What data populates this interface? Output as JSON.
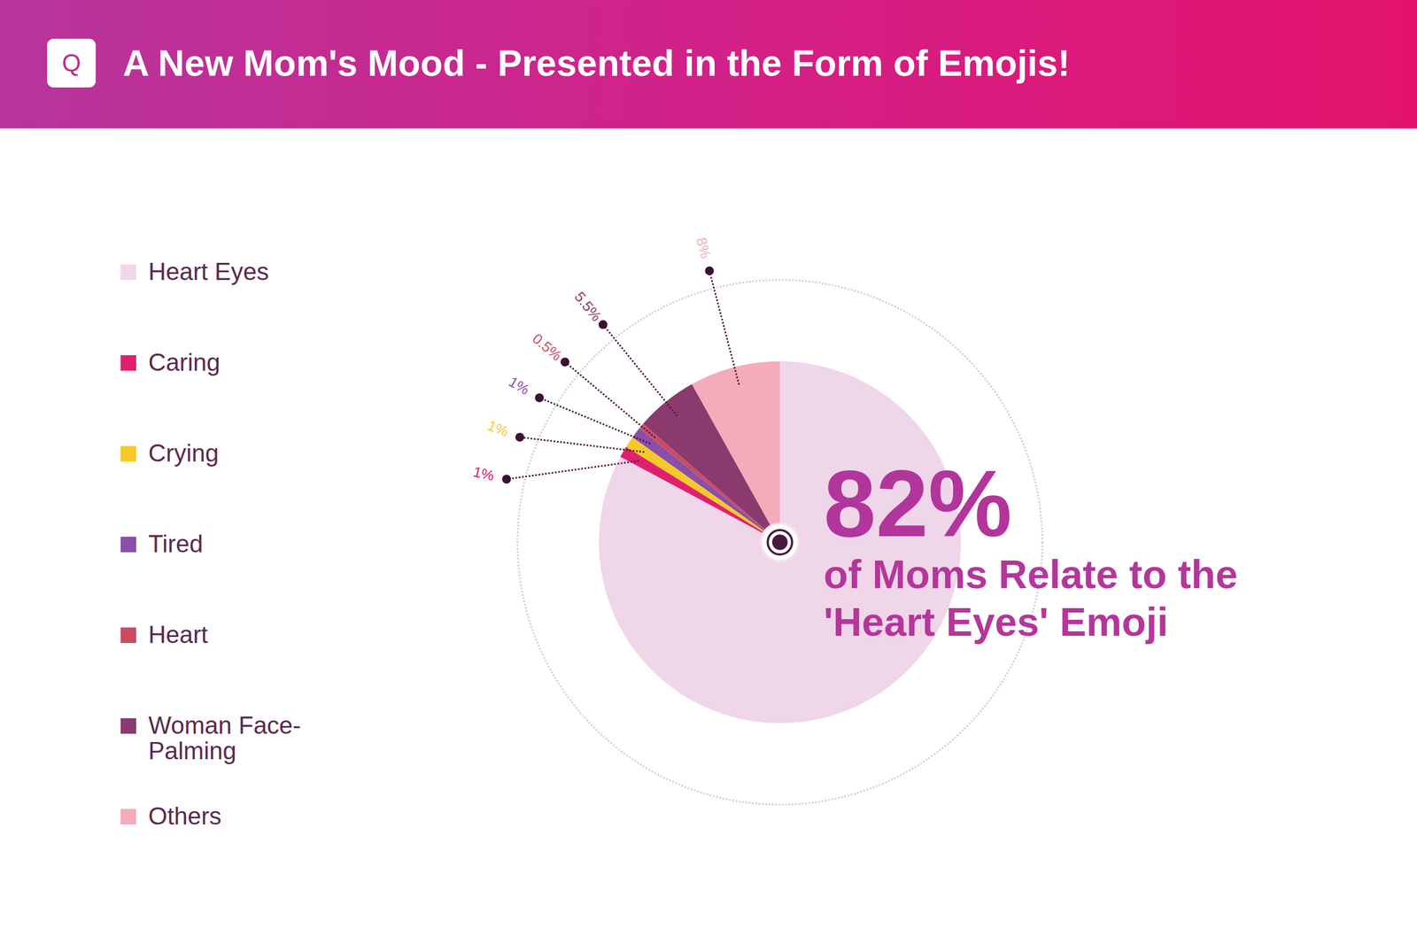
{
  "chart_data": {
    "type": "pie",
    "title": "A New Mom's Mood - Presented in the Form of Emojis!",
    "logo": "Q",
    "categories": [
      "Heart Eyes",
      "Caring",
      "Crying",
      "Tired",
      "Heart",
      "Woman Face-Palming",
      "Others"
    ],
    "values": [
      82,
      1,
      1,
      1,
      0.5,
      5.5,
      8
    ],
    "value_labels": [
      "82%",
      "1%",
      "1%",
      "1%",
      "0.5%",
      "5.5%",
      "8%"
    ],
    "colors": [
      "#f0d6e9",
      "#e0206f",
      "#f6c928",
      "#8a4fa8",
      "#cc4b63",
      "#8b3a6e",
      "#f5abb9"
    ],
    "annotation": "of Moms Relate to the 'Heart Eyes' Emoji",
    "legend": "left",
    "data_labels": true
  }
}
